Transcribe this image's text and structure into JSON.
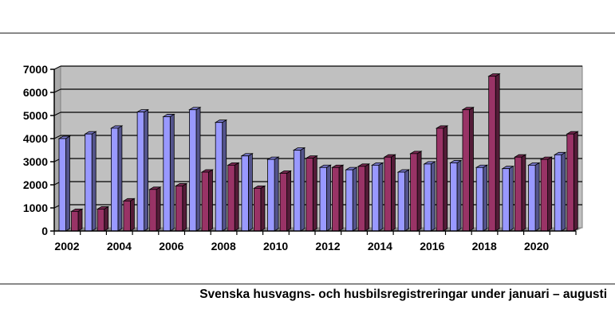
{
  "caption": "Svenska husvagns- och husbilsregistreringar under januari – augusti",
  "chart_data": {
    "type": "bar",
    "title": "",
    "xlabel": "",
    "ylabel": "",
    "ylim": [
      0,
      7000
    ],
    "yticks": [
      0,
      1000,
      2000,
      3000,
      4000,
      5000,
      6000,
      7000
    ],
    "xtick_labels": [
      "2002",
      "2004",
      "2006",
      "2008",
      "2010",
      "2012",
      "2014",
      "2016",
      "2018",
      "2020"
    ],
    "categories": [
      "2002",
      "2003",
      "2004",
      "2005",
      "2006",
      "2007",
      "2008",
      "2009",
      "2010",
      "2011",
      "2012",
      "2013",
      "2014",
      "2015",
      "2016",
      "2017",
      "2018",
      "2019",
      "2020",
      "2021"
    ],
    "grid": true,
    "legend": false,
    "series": [
      {
        "values": [
          4000,
          4200,
          4450,
          5150,
          4950,
          5250,
          4700,
          3250,
          3100,
          3500,
          2750,
          2650,
          2850,
          2550,
          2900,
          2950,
          2750,
          2700,
          2850,
          3300
        ],
        "color": "#9999ff"
      },
      {
        "values": [
          850,
          950,
          1300,
          1800,
          1950,
          2550,
          2850,
          1850,
          2500,
          3150,
          2750,
          2800,
          3200,
          3350,
          4450,
          5250,
          6700,
          3200,
          3100,
          4200
        ],
        "color": "#993366"
      }
    ],
    "plot_bg": "#c0c0c0"
  }
}
